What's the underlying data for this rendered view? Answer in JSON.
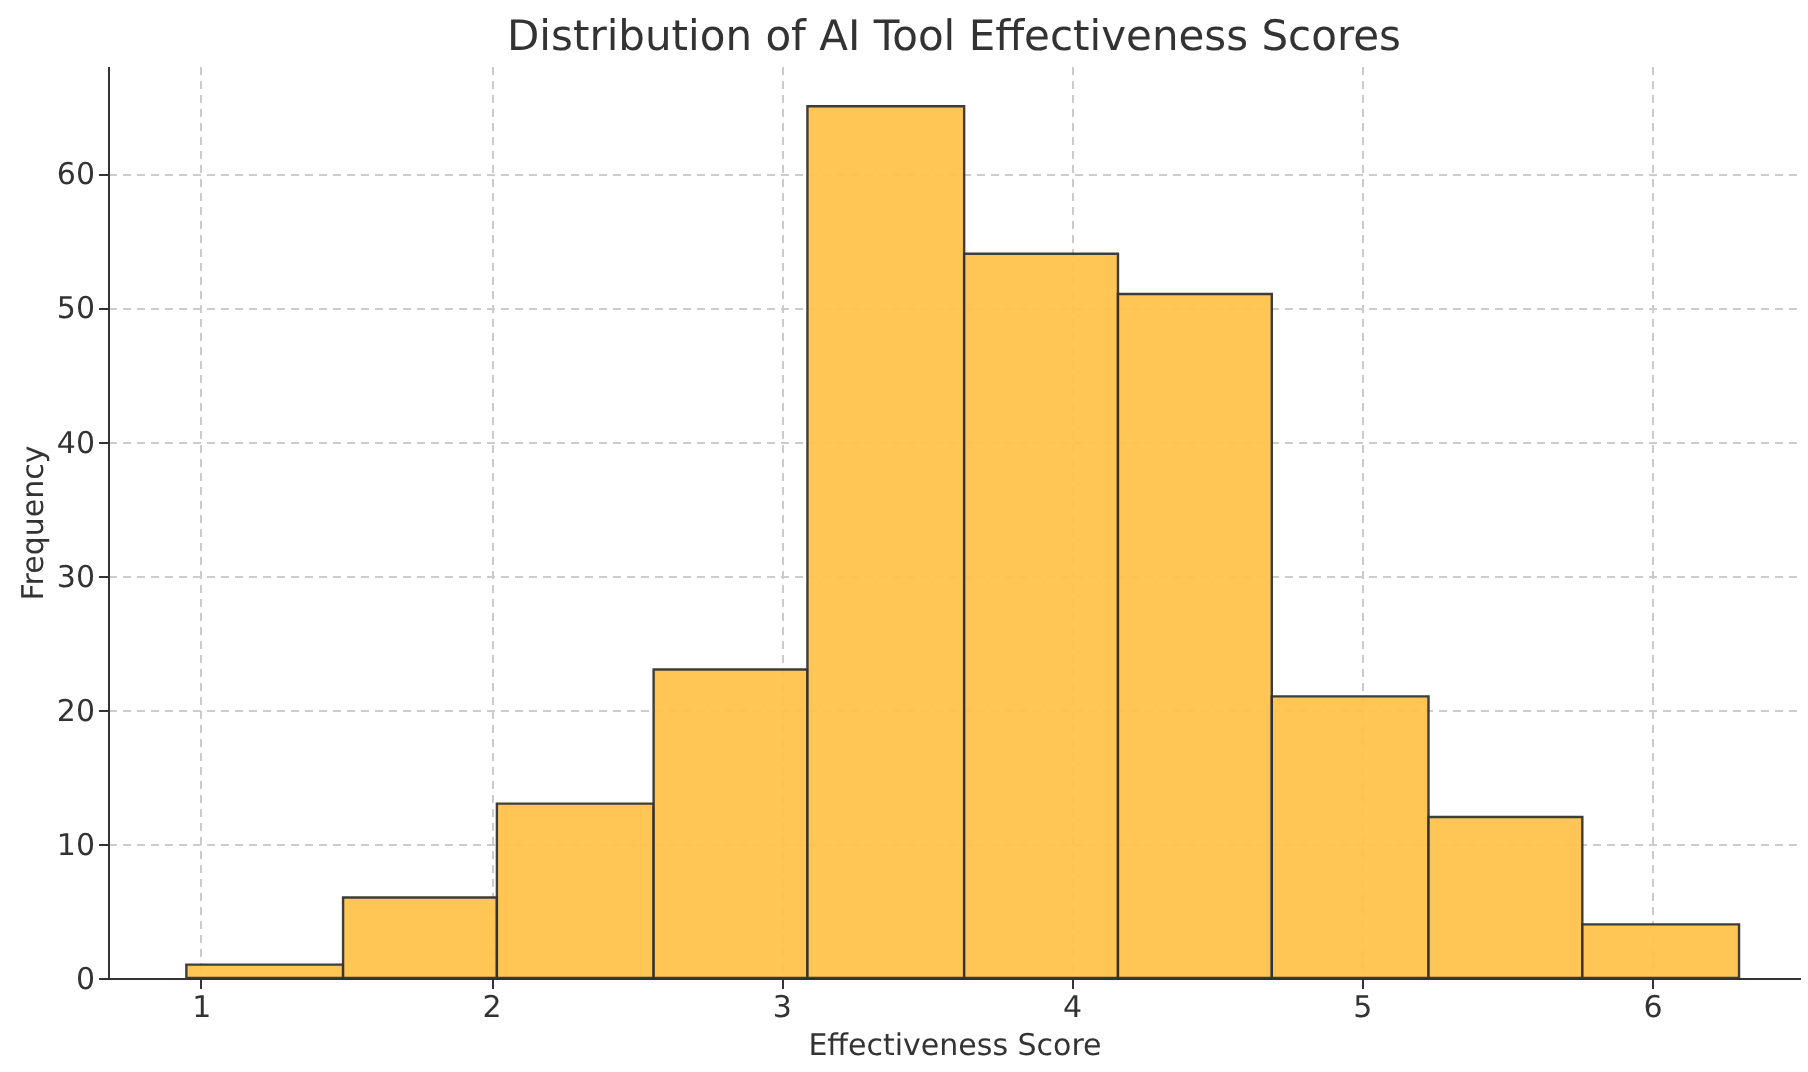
{
  "chart_data": {
    "type": "histogram",
    "title": "Distribution of AI Tool Effectiveness Scores",
    "xlabel": "Effectiveness Score",
    "ylabel": "Frequency",
    "bins": [
      0.95,
      1.49,
      2.02,
      2.56,
      3.09,
      3.63,
      4.16,
      4.69,
      5.23,
      5.76,
      6.3
    ],
    "values": [
      1,
      6,
      13,
      23,
      65,
      54,
      51,
      21,
      12,
      4
    ],
    "color": "#ffc34d",
    "xlim": [
      0.68,
      6.51
    ],
    "xticks": [
      1,
      2,
      3,
      4,
      5,
      6
    ],
    "ylim": [
      0,
      68
    ],
    "yticks": [
      0,
      10,
      20,
      30,
      40,
      50,
      60
    ],
    "grid": true
  }
}
